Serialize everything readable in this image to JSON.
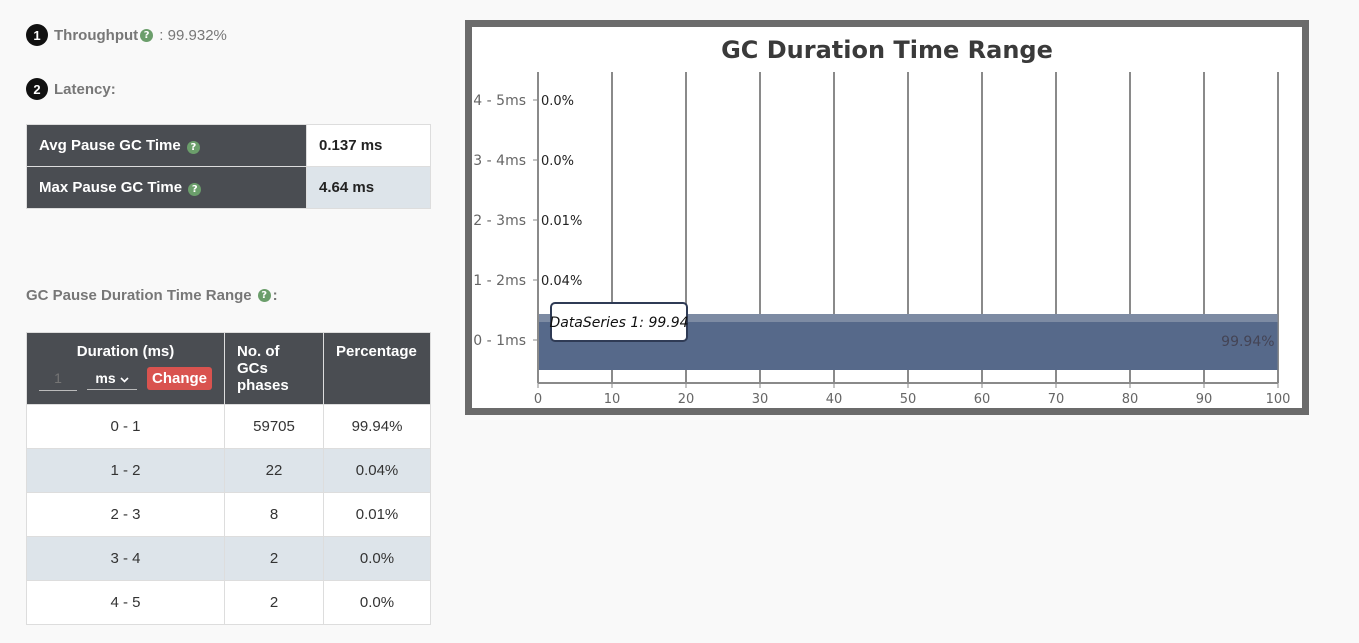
{
  "throughput": {
    "index": "1",
    "label": "Throughput",
    "separator": " : ",
    "value": "99.932%"
  },
  "latency": {
    "index": "2",
    "label": "Latency:",
    "rows": [
      {
        "label": "Avg Pause GC Time",
        "value": "0.137 ms"
      },
      {
        "label": "Max Pause GC Time",
        "value": "4.64 ms"
      }
    ]
  },
  "range_section": {
    "title": "GC Pause Duration Time Range",
    "title_suffix": ":",
    "headers": {
      "duration": "Duration (ms)",
      "count": "No. of GCs phases",
      "percentage": "Percentage"
    },
    "duration_input_placeholder": "1",
    "unit_select_value": "ms",
    "change_button": "Change",
    "rows": [
      {
        "duration": "0 - 1",
        "count": "59705",
        "percentage": "99.94%"
      },
      {
        "duration": "1 - 2",
        "count": "22",
        "percentage": "0.04%"
      },
      {
        "duration": "2 - 3",
        "count": "8",
        "percentage": "0.01%"
      },
      {
        "duration": "3 - 4",
        "count": "2",
        "percentage": "0.0%"
      },
      {
        "duration": "4 - 5",
        "count": "2",
        "percentage": "0.0%"
      }
    ]
  },
  "chart_data": {
    "type": "bar",
    "orientation": "horizontal",
    "title": "GC Duration Time Range",
    "categories": [
      "0 - 1ms",
      "1 - 2ms",
      "2 - 3ms",
      "3 - 4ms",
      "4 - 5ms"
    ],
    "series": [
      {
        "name": "DataSeries 1",
        "values": [
          99.94,
          0.04,
          0.01,
          0.0,
          0.0
        ],
        "labels": [
          "99.94%",
          "0.04%",
          "0.01%",
          "0.0%",
          "0.0%"
        ]
      }
    ],
    "xlim": [
      0,
      100
    ],
    "xticks": [
      0,
      10,
      20,
      30,
      40,
      50,
      60,
      70,
      80,
      90,
      100
    ],
    "grid": "vertical",
    "tooltip": "DataSeries 1: 99.94",
    "bar_color": "#56698a"
  }
}
